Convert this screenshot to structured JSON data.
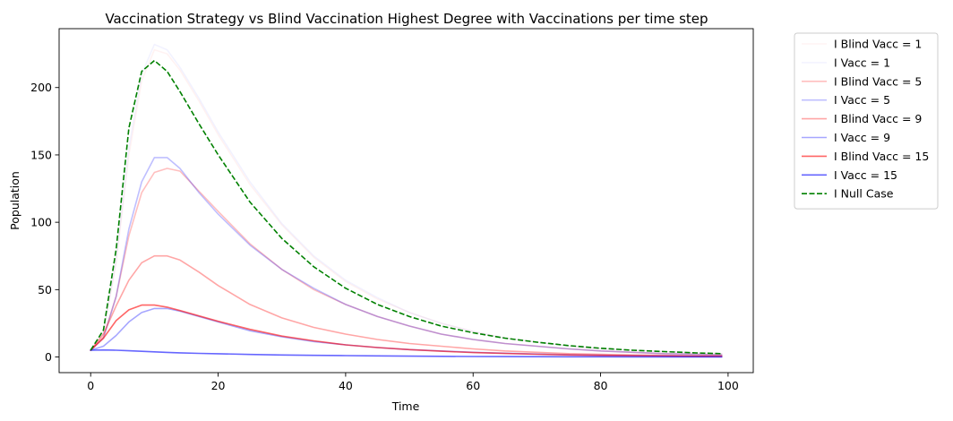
{
  "chart_data": {
    "type": "line",
    "title": "Vaccination Strategy vs Blind Vaccination Highest Degree with Vaccinations per time step",
    "xlabel": "Time",
    "ylabel": "Population",
    "xlim": [
      -4.95,
      103.95
    ],
    "ylim": [
      -11.6,
      243.7
    ],
    "xticks": [
      0,
      20,
      40,
      60,
      80,
      100
    ],
    "yticks": [
      0,
      50,
      100,
      150,
      200
    ],
    "grid": false,
    "legend_position": "outside-top-right",
    "series": [
      {
        "name": "I Blind Vacc = 1",
        "color": "#ff0000",
        "opacity": 0.05,
        "dash": "solid",
        "x": [
          0,
          2,
          4,
          6,
          8,
          10,
          12,
          14,
          17,
          20,
          25,
          30,
          35,
          40,
          45,
          50,
          55,
          60,
          65,
          70,
          75,
          80,
          85,
          90,
          95,
          99
        ],
        "values": [
          5,
          18,
          70,
          150,
          205,
          228,
          225,
          213,
          190,
          165,
          128,
          98,
          74,
          56,
          43,
          33,
          25,
          19,
          14,
          11,
          8,
          6,
          5,
          4,
          3,
          2.5
        ]
      },
      {
        "name": "I Vacc = 1",
        "color": "#0000ff",
        "opacity": 0.05,
        "dash": "solid",
        "x": [
          0,
          2,
          4,
          6,
          8,
          10,
          12,
          14,
          17,
          20,
          25,
          30,
          35,
          40,
          45,
          50,
          55,
          60,
          65,
          70,
          75,
          80,
          85,
          90,
          95,
          99
        ],
        "values": [
          5,
          18,
          72,
          155,
          210,
          232,
          228,
          215,
          192,
          167,
          130,
          99,
          75,
          57,
          44,
          33,
          25,
          19,
          14,
          11,
          8,
          6,
          5,
          4,
          3,
          2.5
        ]
      },
      {
        "name": "I Blind Vacc = 5",
        "color": "#ff0000",
        "opacity": 0.25,
        "dash": "solid",
        "x": [
          0,
          2,
          4,
          6,
          8,
          10,
          12,
          14,
          17,
          20,
          25,
          30,
          35,
          40,
          45,
          50,
          55,
          60,
          65,
          70,
          75,
          80,
          85,
          90,
          95,
          99
        ],
        "values": [
          5,
          15,
          45,
          90,
          122,
          137,
          140,
          138,
          123,
          108,
          84,
          65,
          50,
          39,
          30,
          23,
          17,
          13,
          10,
          8,
          6,
          4.5,
          3.5,
          2.5,
          2,
          1.5
        ]
      },
      {
        "name": "I Vacc = 5",
        "color": "#0000ff",
        "opacity": 0.25,
        "dash": "solid",
        "x": [
          0,
          2,
          4,
          6,
          8,
          10,
          12,
          14,
          17,
          20,
          25,
          30,
          35,
          40,
          45,
          50,
          55,
          60,
          65,
          70,
          75,
          80,
          85,
          90,
          95,
          99
        ],
        "values": [
          5,
          14,
          45,
          95,
          130,
          148,
          148,
          140,
          122,
          106,
          83,
          65,
          51,
          39,
          30,
          23,
          17,
          13,
          10,
          8,
          6,
          4.5,
          3.5,
          2.5,
          2,
          1.5
        ]
      },
      {
        "name": "I Blind Vacc = 9",
        "color": "#ff0000",
        "opacity": 0.35,
        "dash": "solid",
        "x": [
          0,
          2,
          4,
          6,
          8,
          10,
          12,
          14,
          17,
          20,
          25,
          30,
          35,
          40,
          45,
          50,
          55,
          60,
          65,
          70,
          75,
          80,
          85,
          90,
          95,
          99
        ],
        "values": [
          5,
          17,
          38,
          57,
          70,
          75,
          75,
          72,
          63,
          53,
          39,
          29,
          22,
          17,
          13,
          10,
          8,
          6,
          4.5,
          3.5,
          2.5,
          2,
          1.5,
          1.2,
          1,
          0.8
        ]
      },
      {
        "name": "I Vacc = 9",
        "color": "#0000ff",
        "opacity": 0.35,
        "dash": "solid",
        "x": [
          0,
          2,
          4,
          6,
          8,
          10,
          12,
          14,
          17,
          20,
          25,
          30,
          35,
          40,
          45,
          50,
          55,
          60,
          65,
          70,
          75,
          80,
          85,
          90,
          95,
          99
        ],
        "values": [
          5,
          8,
          16,
          26,
          33,
          36,
          36,
          34,
          30,
          26,
          19.5,
          15,
          11.5,
          9,
          7,
          5.5,
          4.5,
          3.5,
          2.8,
          2.2,
          1.7,
          1.3,
          1,
          0.8,
          0.6,
          0.5
        ]
      },
      {
        "name": "I Blind Vacc = 15",
        "color": "#ff0000",
        "opacity": 0.6,
        "dash": "solid",
        "x": [
          0,
          2,
          4,
          6,
          8,
          10,
          12,
          14,
          17,
          20,
          25,
          30,
          35,
          40,
          45,
          50,
          55,
          60,
          65,
          70,
          75,
          80,
          85,
          90,
          95,
          99
        ],
        "values": [
          5,
          14,
          27,
          35,
          38.5,
          38.5,
          37,
          34.5,
          30.5,
          26.5,
          20.5,
          15.5,
          12,
          9,
          7,
          5.5,
          4.3,
          3.3,
          2.6,
          2,
          1.5,
          1.2,
          0.9,
          0.7,
          0.5,
          0.4
        ]
      },
      {
        "name": "I Vacc = 15",
        "color": "#0000ff",
        "opacity": 0.6,
        "dash": "solid",
        "x": [
          0,
          2,
          4,
          6,
          8,
          10,
          12,
          14,
          17,
          20,
          25,
          30,
          35,
          40,
          45,
          50,
          55,
          60,
          65,
          70,
          75,
          80,
          85,
          90,
          95,
          99
        ],
        "values": [
          5,
          5.2,
          5,
          4.6,
          4.2,
          3.8,
          3.4,
          3.1,
          2.7,
          2.4,
          1.9,
          1.5,
          1.2,
          1,
          0.8,
          0.6,
          0.5,
          0.4,
          0.3,
          0.25,
          0.2,
          0.15,
          0.12,
          0.1,
          0.08,
          0.06
        ]
      },
      {
        "name": "I Null Case",
        "color": "#008000",
        "opacity": 1,
        "dash": "dashed",
        "x": [
          0,
          2,
          4,
          6,
          8,
          10,
          12,
          14,
          17,
          20,
          25,
          30,
          35,
          40,
          45,
          50,
          55,
          60,
          65,
          70,
          75,
          80,
          85,
          90,
          95,
          99
        ],
        "values": [
          5,
          20,
          80,
          170,
          212,
          220,
          212,
          197,
          173,
          150,
          115,
          88,
          67,
          51,
          39,
          30,
          23,
          18,
          14,
          11,
          8.5,
          6.5,
          5,
          4,
          3,
          2.5
        ]
      }
    ]
  }
}
